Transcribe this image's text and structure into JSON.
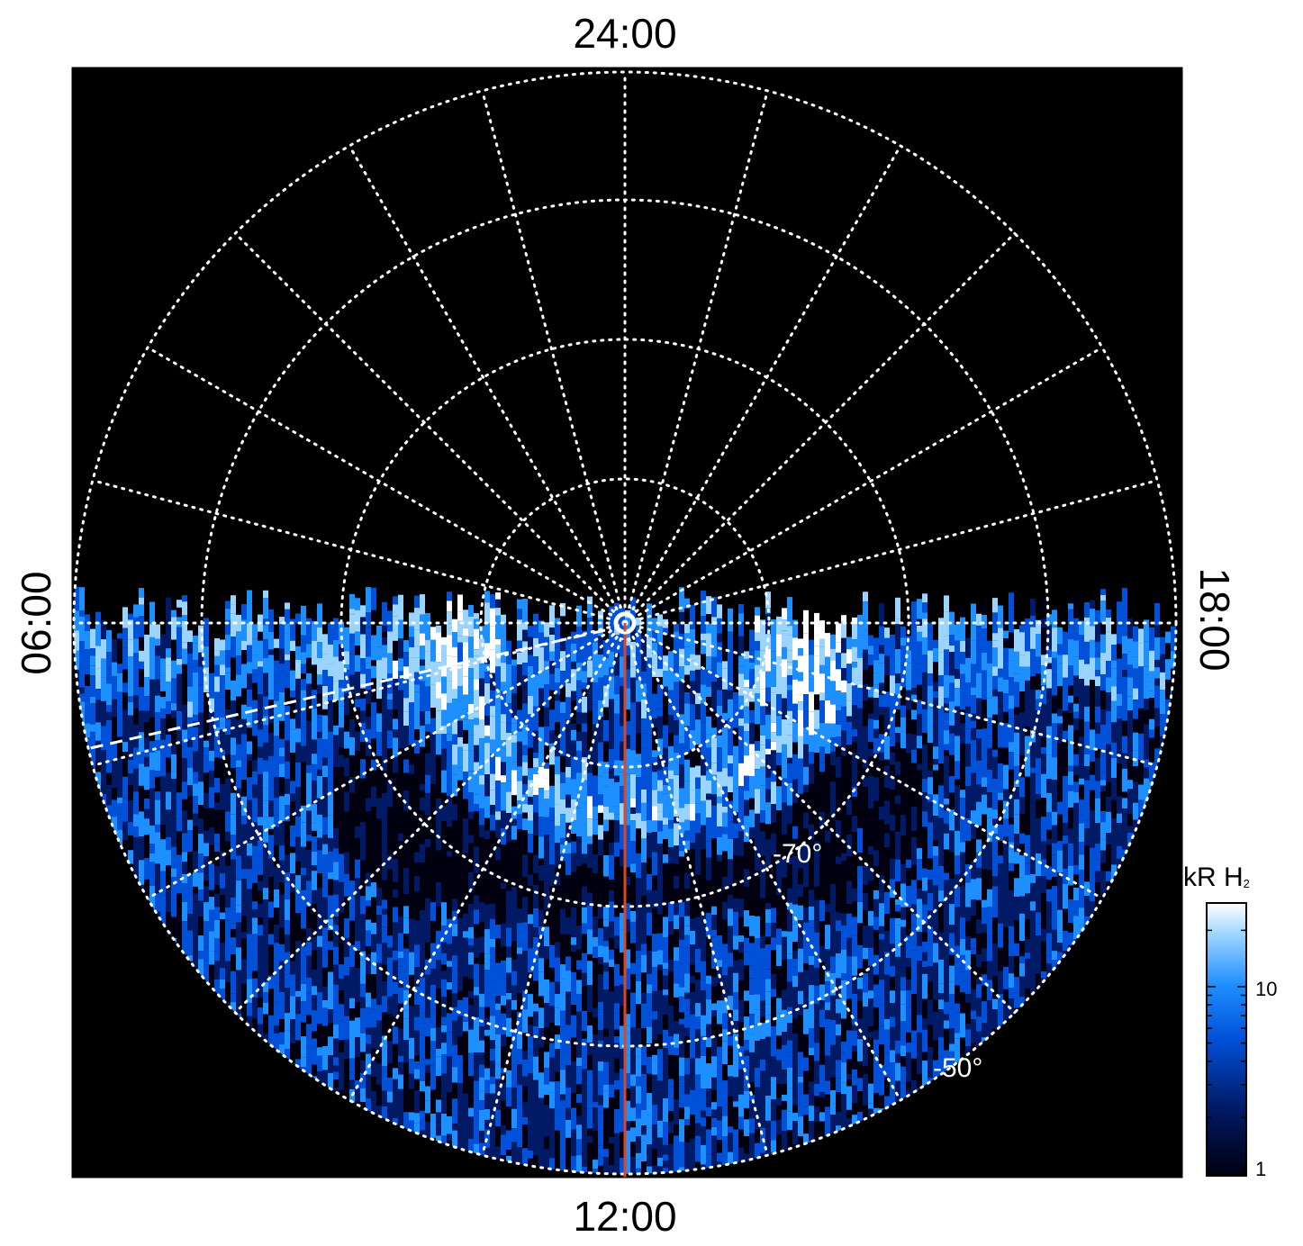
{
  "plot": {
    "lt_labels": {
      "top": "24:00",
      "bottom": "12:00",
      "left": "06:00",
      "right": "18:00"
    },
    "lat_labels": [
      "-70°",
      "-50°"
    ],
    "background_color": "#000000",
    "grid_color": "#ffffff",
    "meridian_color": "#e0451c"
  },
  "colorbar": {
    "title": "kR H",
    "title_sub": "2",
    "ticks": [
      "10",
      "1"
    ],
    "colors": [
      "#000010",
      "#001a66",
      "#0050d8",
      "#1e8fff",
      "#9ad4ff",
      "#ffffff"
    ]
  }
}
